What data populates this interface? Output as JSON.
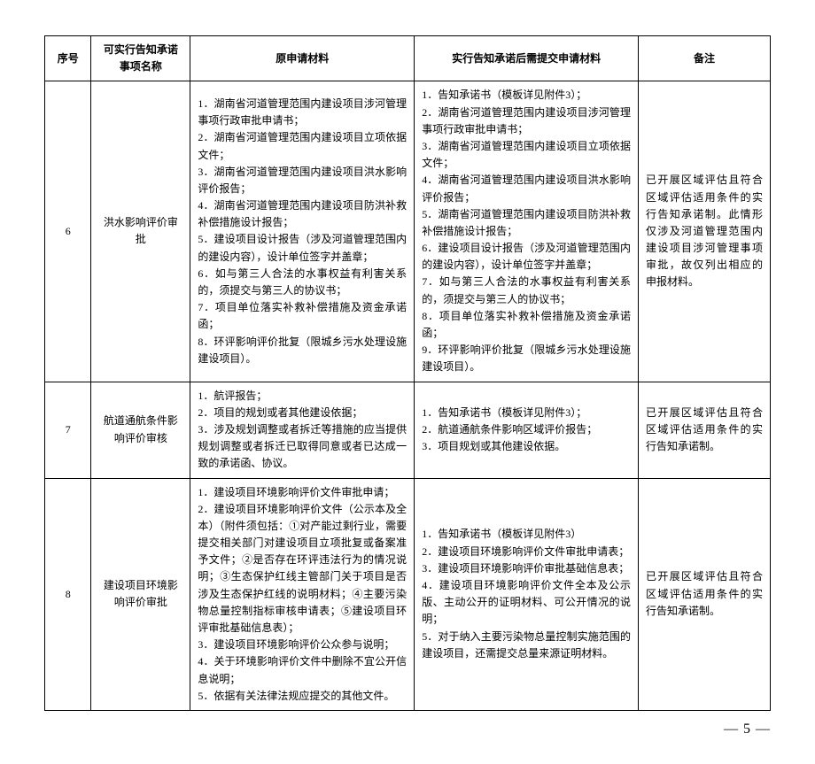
{
  "headers": {
    "seq": "序号",
    "name": "可实行告知承诺事项名称",
    "orig": "原申请材料",
    "new": "实行告知承诺后需提交申请材料",
    "note": "备注"
  },
  "rows": [
    {
      "seq": "6",
      "name": "洪水影响评价审批",
      "orig": "1．湖南省河道管理范围内建设项目涉河管理事项行政审批申请书；\n2．湖南省河道管理范围内建设项目立项依据文件；\n3．湖南省河道管理范围内建设项目洪水影响评价报告；\n4．湖南省河道管理范围内建设项目防洪补救补偿措施设计报告；\n5．建设项目设计报告（涉及河道管理范围内的建设内容），设计单位签字并盖章；\n6．如与第三人合法的水事权益有利害关系的，须提交与第三人的协议书；\n7．项目单位落实补救补偿措施及资金承诺函；\n8．环评影响评价批复（限城乡污水处理设施建设项目）。",
      "new": "1．告知承诺书（模板详见附件3）；\n2．湖南省河道管理范围内建设项目涉河管理事项行政审批申请书；\n3．湖南省河道管理范围内建设项目立项依据文件；\n4．湖南省河道管理范围内建设项目洪水影响评价报告；\n5．湖南省河道管理范围内建设项目防洪补救补偿措施设计报告；\n6．建设项目设计报告（涉及河道管理范围内的建设内容），设计单位签字并盖章；\n7．如与第三人合法的水事权益有利害关系的，须提交与第三人的协议书；\n8．项目单位落实补救补偿措施及资金承诺函；\n9．环评影响评价批复（限城乡污水处理设施建设项目）。",
      "note": "已开展区域评估且符合区域评估适用条件的实行告知承诺制。此情形仅涉及河道管理范围内建设项目涉河管理事项审批，故仅列出相应的申报材料。"
    },
    {
      "seq": "7",
      "name": "航道通航条件影响评价审核",
      "orig": "1．航评报告；\n2．项目的规划或者其他建设依据；\n3．涉及规划调整或者拆迁等措施的应当提供规划调整或者拆迁已取得同意或者已达成一致的承诺函、协议。",
      "new": "1．告知承诺书（模板详见附件3）；\n2．航道通航条件影响区域评价报告；\n3．项目规划或其他建设依据。",
      "note": "已开展区域评估且符合区域评估适用条件的实行告知承诺制。"
    },
    {
      "seq": "8",
      "name": "建设项目环境影响评价审批",
      "orig": "1．建设项目环境影响评价文件审批申请；\n2．建设项目环境影响评价文件（公示本及全本）（附件须包括：①对产能过剩行业，需要提交相关部门对建设项目立项批复或备案准予文件；②是否存在环评违法行为的情况说明；③生态保护红线主管部门关于项目是否涉及生态保护红线的说明材料；④主要污染物总量控制指标审核申请表；⑤建设项目环评审批基础信息表）；\n3．建设项目环境影响评价公众参与说明；\n4．关于环境影响评价文件中删除不宜公开信息说明；\n5．依据有关法律法规应提交的其他文件。",
      "new": "1．告知承诺书（模板详见附件3）\n2．建设项目环境影响评价文件审批申请表；\n3．建设项目环境影响评价审批基础信息表；\n4．建设项目环境影响评价文件全本及公示版、主动公开的证明材料、可公开情况的说明；\n5．对于纳入主要污染物总量控制实施范围的建设项目，还需提交总量来源证明材料。",
      "note": "已开展区域评估且符合区域评估适用条件的实行告知承诺制。"
    }
  ],
  "page": "— 5 —"
}
